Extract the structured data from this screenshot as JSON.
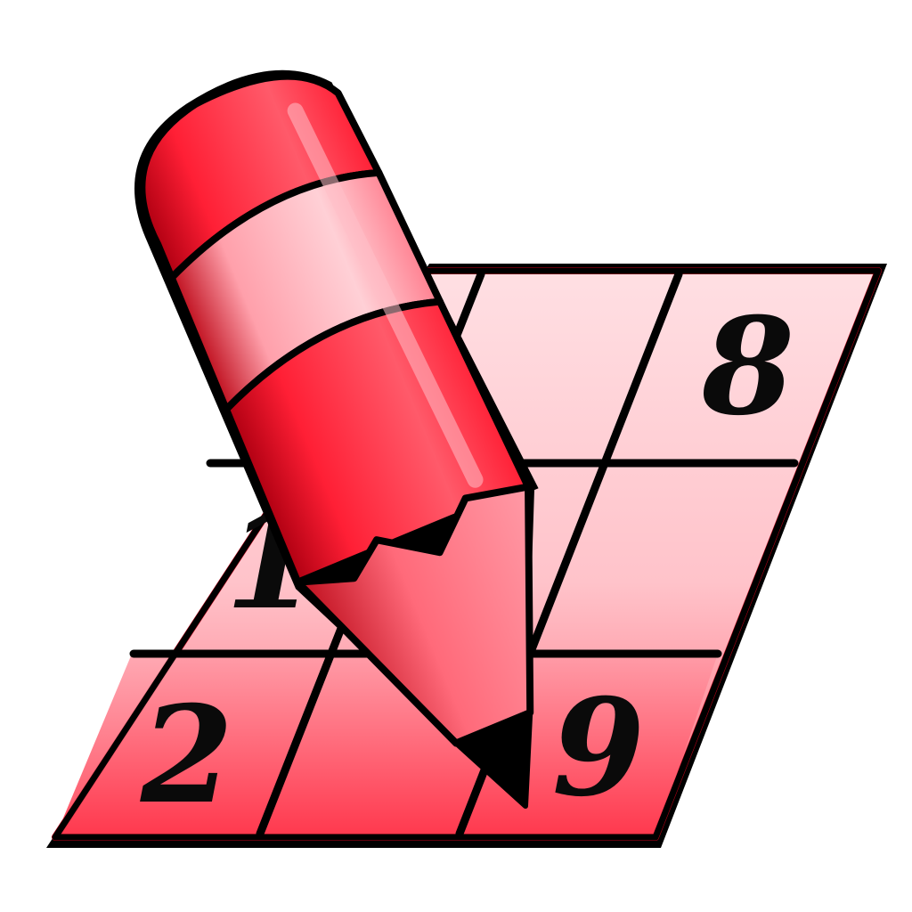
{
  "icon": {
    "name": "sudoku-pencil-icon",
    "colors": {
      "grid_light": "#ffd0d6",
      "grid_mid": "#ff9aa6",
      "grid_dark": "#ff3046",
      "pencil_main": "#ff2a3c",
      "pencil_light": "#ff8a96",
      "pencil_shadow": "#b30010",
      "outline": "#000000",
      "lead": "#000000"
    },
    "grid": {
      "rows": 3,
      "cols": 3,
      "digits": [
        {
          "row": 0,
          "col": 2,
          "value": "8"
        },
        {
          "row": 1,
          "col": 0,
          "value": "1"
        },
        {
          "row": 2,
          "col": 0,
          "value": "2"
        },
        {
          "row": 2,
          "col": 2,
          "value": "9"
        }
      ]
    }
  }
}
